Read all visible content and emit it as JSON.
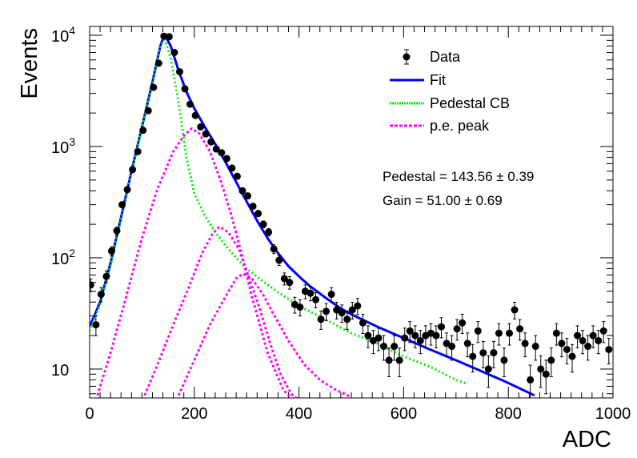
{
  "chart_data": {
    "type": "scatter",
    "title": "",
    "xlabel": "ADC",
    "ylabel": "Events",
    "xlim": [
      0,
      1000
    ],
    "ylim": [
      5.5,
      12000
    ],
    "yscale": "log",
    "x_ticks": [
      "0",
      "200",
      "400",
      "600",
      "800",
      "1000"
    ],
    "y_ticks": [
      {
        "value": 10,
        "base": "10",
        "exp": ""
      },
      {
        "value": 100,
        "base": "10",
        "exp": "2"
      },
      {
        "value": 1000,
        "base": "10",
        "exp": "3"
      },
      {
        "value": 10000,
        "base": "10",
        "exp": "4"
      }
    ],
    "grid": false,
    "legend_position": "top-right",
    "legend": [
      {
        "label": "Data",
        "style": "marker",
        "color": "#000000"
      },
      {
        "label": "Fit",
        "style": "solid",
        "color": "#0000ff"
      },
      {
        "label": "Pedestal CB",
        "style": "dotted",
        "color": "#00ee00"
      },
      {
        "label": "p.e. peak",
        "style": "dashed",
        "color": "#ff00ff"
      }
    ],
    "annotations": [
      "Pedestal = 143.56 ± 0.39",
      "Gain = 51.00 ± 0.69"
    ],
    "fit_parameters": {
      "pedestal": 143.56,
      "pedestal_err": 0.39,
      "gain": 51.0,
      "gain_err": 0.69
    },
    "series": [
      {
        "name": "Data",
        "kind": "points_with_errors",
        "color": "#000000",
        "points": [
          [
            2,
            57
          ],
          [
            12,
            25
          ],
          [
            22,
            47
          ],
          [
            32,
            68
          ],
          [
            42,
            115
          ],
          [
            52,
            175
          ],
          [
            62,
            300
          ],
          [
            72,
            410
          ],
          [
            82,
            620
          ],
          [
            92,
            900
          ],
          [
            102,
            1400
          ],
          [
            112,
            2100
          ],
          [
            122,
            3400
          ],
          [
            132,
            5600
          ],
          [
            142,
            9800
          ],
          [
            152,
            9700
          ],
          [
            162,
            7000
          ],
          [
            172,
            4700
          ],
          [
            182,
            3300
          ],
          [
            192,
            2400
          ],
          [
            202,
            1900
          ],
          [
            212,
            1500
          ],
          [
            222,
            1300
          ],
          [
            232,
            1100
          ],
          [
            242,
            950
          ],
          [
            252,
            880
          ],
          [
            262,
            780
          ],
          [
            272,
            640
          ],
          [
            282,
            540
          ],
          [
            292,
            400
          ],
          [
            302,
            360
          ],
          [
            312,
            290
          ],
          [
            322,
            250
          ],
          [
            332,
            200
          ],
          [
            342,
            170
          ],
          [
            352,
            120
          ],
          [
            362,
            95
          ],
          [
            372,
            65
          ],
          [
            382,
            60
          ],
          [
            392,
            38
          ],
          [
            402,
            36
          ],
          [
            412,
            50
          ],
          [
            422,
            48
          ],
          [
            432,
            42
          ],
          [
            442,
            28
          ],
          [
            452,
            33
          ],
          [
            462,
            47
          ],
          [
            472,
            34
          ],
          [
            482,
            32
          ],
          [
            492,
            28
          ],
          [
            502,
            34
          ],
          [
            512,
            37
          ],
          [
            522,
            26
          ],
          [
            532,
            20
          ],
          [
            542,
            18
          ],
          [
            552,
            19
          ],
          [
            562,
            16
          ],
          [
            572,
            12
          ],
          [
            582,
            16
          ],
          [
            592,
            12
          ],
          [
            602,
            19
          ],
          [
            612,
            22
          ],
          [
            622,
            20
          ],
          [
            632,
            18
          ],
          [
            642,
            20
          ],
          [
            652,
            21
          ],
          [
            662,
            20
          ],
          [
            672,
            24
          ],
          [
            682,
            17
          ],
          [
            692,
            16
          ],
          [
            702,
            23
          ],
          [
            712,
            26
          ],
          [
            722,
            17
          ],
          [
            732,
            13
          ],
          [
            742,
            22
          ],
          [
            752,
            14
          ],
          [
            762,
            10
          ],
          [
            772,
            14
          ],
          [
            782,
            21
          ],
          [
            792,
            12
          ],
          [
            802,
            21
          ],
          [
            812,
            34
          ],
          [
            822,
            23
          ],
          [
            832,
            17
          ],
          [
            842,
            8
          ],
          [
            852,
            16
          ],
          [
            862,
            10
          ],
          [
            872,
            9
          ],
          [
            882,
            12
          ],
          [
            892,
            21
          ],
          [
            902,
            17
          ],
          [
            912,
            15
          ],
          [
            922,
            13
          ],
          [
            932,
            20
          ],
          [
            942,
            18
          ],
          [
            952,
            16
          ],
          [
            962,
            20
          ],
          [
            972,
            18
          ],
          [
            982,
            22
          ],
          [
            992,
            15
          ]
        ]
      },
      {
        "name": "Fit",
        "kind": "line",
        "color": "#0000ff",
        "points": [
          [
            0,
            24
          ],
          [
            20,
            40
          ],
          [
            40,
            90
          ],
          [
            60,
            230
          ],
          [
            80,
            600
          ],
          [
            100,
            1500
          ],
          [
            120,
            3800
          ],
          [
            135,
            8000
          ],
          [
            143,
            10200
          ],
          [
            155,
            8000
          ],
          [
            170,
            4800
          ],
          [
            185,
            3100
          ],
          [
            200,
            2200
          ],
          [
            220,
            1500
          ],
          [
            240,
            1050
          ],
          [
            260,
            720
          ],
          [
            280,
            480
          ],
          [
            300,
            320
          ],
          [
            320,
            215
          ],
          [
            340,
            150
          ],
          [
            360,
            110
          ],
          [
            380,
            84
          ],
          [
            400,
            68
          ],
          [
            420,
            56
          ],
          [
            450,
            44
          ],
          [
            480,
            35
          ],
          [
            500,
            31
          ],
          [
            550,
            24
          ],
          [
            600,
            19
          ],
          [
            650,
            15
          ],
          [
            700,
            12
          ],
          [
            750,
            9.5
          ],
          [
            800,
            7.5
          ],
          [
            850,
            5.8
          ]
        ]
      },
      {
        "name": "Pedestal CB",
        "kind": "line",
        "color": "#00ee00",
        "points": [
          [
            0,
            22
          ],
          [
            20,
            38
          ],
          [
            40,
            85
          ],
          [
            60,
            220
          ],
          [
            80,
            580
          ],
          [
            100,
            1450
          ],
          [
            120,
            3700
          ],
          [
            135,
            7800
          ],
          [
            143,
            9500
          ],
          [
            155,
            6200
          ],
          [
            170,
            2500
          ],
          [
            185,
            800
          ],
          [
            200,
            380
          ],
          [
            220,
            240
          ],
          [
            240,
            170
          ],
          [
            260,
            128
          ],
          [
            280,
            100
          ],
          [
            300,
            80
          ],
          [
            330,
            62
          ],
          [
            360,
            49
          ],
          [
            400,
            37
          ],
          [
            450,
            28
          ],
          [
            500,
            21
          ],
          [
            550,
            17
          ],
          [
            600,
            13
          ],
          [
            650,
            10.5
          ],
          [
            700,
            8
          ],
          [
            720,
            7.4
          ]
        ]
      },
      {
        "name": "p.e. peak 1",
        "kind": "line",
        "color": "#ff00ff",
        "points": [
          [
            15,
            5.8
          ],
          [
            40,
            14
          ],
          [
            70,
            45
          ],
          [
            100,
            150
          ],
          [
            130,
            420
          ],
          [
            160,
            900
          ],
          [
            180,
            1250
          ],
          [
            195,
            1450
          ],
          [
            210,
            1300
          ],
          [
            230,
            900
          ],
          [
            250,
            500
          ],
          [
            270,
            250
          ],
          [
            290,
            110
          ],
          [
            310,
            45
          ],
          [
            340,
            14
          ],
          [
            370,
            6.5
          ],
          [
            385,
            5.5
          ]
        ]
      },
      {
        "name": "p.e. peak 2",
        "kind": "line",
        "color": "#ff00ff",
        "points": [
          [
            105,
            5.8
          ],
          [
            130,
            11
          ],
          [
            160,
            25
          ],
          [
            190,
            55
          ],
          [
            215,
            110
          ],
          [
            235,
            165
          ],
          [
            248,
            190
          ],
          [
            265,
            170
          ],
          [
            285,
            120
          ],
          [
            305,
            65
          ],
          [
            325,
            35
          ],
          [
            345,
            17
          ],
          [
            365,
            9
          ],
          [
            385,
            6
          ],
          [
            395,
            5.5
          ]
        ]
      },
      {
        "name": "p.e. peak 3",
        "kind": "line",
        "color": "#ff00ff",
        "points": [
          [
            170,
            5.8
          ],
          [
            200,
            12
          ],
          [
            230,
            25
          ],
          [
            260,
            45
          ],
          [
            280,
            65
          ],
          [
            293,
            72
          ],
          [
            310,
            65
          ],
          [
            330,
            48
          ],
          [
            350,
            32
          ],
          [
            380,
            18
          ],
          [
            410,
            11
          ],
          [
            440,
            8
          ],
          [
            470,
            6.5
          ],
          [
            500,
            5.6
          ]
        ]
      }
    ]
  }
}
